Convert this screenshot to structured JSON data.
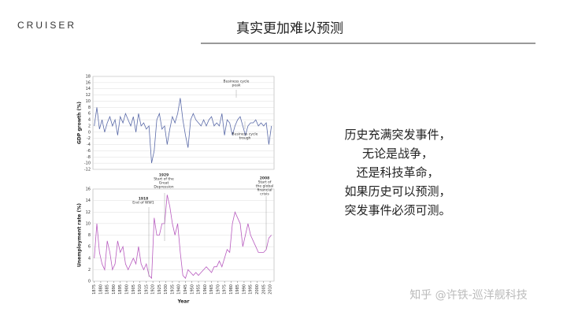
{
  "header": {
    "logo": "CRUISER",
    "title": "真实更加难以预测"
  },
  "text": [
    "历史充满突发事件，",
    "无论是战争，",
    "还是科技革命，",
    "如果历史可以预测，",
    "突发事件必须可测。"
  ],
  "watermark": "知乎 @许铁-巡洋舰科技",
  "chart_data": [
    {
      "type": "line",
      "ylabel": "GDP growth (%)",
      "x": [
        1875,
        1877,
        1879,
        1881,
        1883,
        1885,
        1887,
        1889,
        1891,
        1893,
        1895,
        1897,
        1899,
        1901,
        1903,
        1905,
        1907,
        1909,
        1911,
        1913,
        1915,
        1917,
        1919,
        1921,
        1923,
        1925,
        1927,
        1929,
        1931,
        1933,
        1935,
        1937,
        1939,
        1941,
        1943,
        1945,
        1947,
        1949,
        1951,
        1953,
        1955,
        1957,
        1959,
        1961,
        1963,
        1965,
        1967,
        1969,
        1971,
        1973,
        1975,
        1977,
        1979,
        1981,
        1983,
        1985,
        1987,
        1989,
        1991,
        1993,
        1995,
        1997,
        1999,
        2001,
        2003,
        2005,
        2007,
        2009,
        2011
      ],
      "series": [
        {
          "color": "#5a6aa8",
          "values": [
            2,
            8,
            1,
            4,
            0,
            3,
            5,
            2,
            4,
            -1,
            5,
            3,
            6,
            4,
            2,
            5,
            0,
            6,
            2,
            3,
            1,
            2,
            -10,
            -6,
            4,
            6,
            1,
            2,
            -4,
            1,
            5,
            3,
            6,
            11,
            4,
            -1,
            -5,
            4,
            6,
            4,
            3,
            2,
            4,
            2,
            4,
            5,
            2,
            3,
            2,
            6,
            -1,
            4,
            3,
            -1,
            2,
            4,
            5,
            2,
            -1,
            2,
            3,
            3,
            4,
            2,
            3,
            2,
            3,
            -4,
            2
          ]
        }
      ],
      "xlim": [
        1874,
        2013
      ],
      "ylim": [
        -12,
        18
      ],
      "yticks": [
        -12,
        -10,
        -8,
        -6,
        -4,
        -2,
        0,
        2,
        4,
        6,
        8,
        10,
        12,
        14,
        16,
        18
      ],
      "annotations": [
        [
          "Business cycle",
          "peak"
        ],
        [
          "Business cycle",
          "trough"
        ]
      ]
    },
    {
      "type": "line",
      "ylabel": "Unemployment rate (%)",
      "xlabel": "Year",
      "x": [
        1875,
        1877,
        1879,
        1881,
        1883,
        1885,
        1887,
        1889,
        1891,
        1893,
        1895,
        1897,
        1899,
        1901,
        1903,
        1905,
        1907,
        1909,
        1911,
        1913,
        1915,
        1917,
        1919,
        1921,
        1923,
        1925,
        1927,
        1929,
        1931,
        1933,
        1935,
        1937,
        1939,
        1941,
        1943,
        1945,
        1947,
        1949,
        1951,
        1953,
        1955,
        1957,
        1959,
        1961,
        1963,
        1965,
        1967,
        1969,
        1971,
        1973,
        1975,
        1977,
        1979,
        1981,
        1983,
        1985,
        1987,
        1989,
        1991,
        1993,
        1995,
        1997,
        1999,
        2001,
        2003,
        2005,
        2007,
        2009,
        2011
      ],
      "series": [
        {
          "color": "#b85cbf",
          "values": [
            4,
            10,
            5,
            3,
            2,
            7,
            5,
            2,
            3,
            7,
            5,
            6,
            3,
            2,
            3,
            4,
            3,
            6,
            3,
            2,
            3,
            1,
            0.5,
            11,
            8,
            8,
            10,
            10,
            15,
            13,
            10,
            8,
            10,
            5,
            1,
            0.5,
            2,
            1.5,
            1,
            1.5,
            1,
            1.5,
            2,
            2.5,
            2,
            1.5,
            2.5,
            2.5,
            3.5,
            2.5,
            4,
            5.5,
            5,
            10,
            12,
            11,
            10,
            6,
            8,
            10,
            8,
            7,
            6,
            5,
            5,
            5,
            5.5,
            7.5,
            8
          ]
        }
      ],
      "xlim": [
        1874,
        2013
      ],
      "ylim": [
        0,
        16
      ],
      "yticks": [
        0,
        2,
        4,
        6,
        8,
        10,
        12,
        14,
        16
      ],
      "xticks": [
        1875,
        1880,
        1885,
        1890,
        1895,
        1900,
        1905,
        1910,
        1915,
        1920,
        1925,
        1930,
        1935,
        1940,
        1945,
        1950,
        1955,
        1960,
        1965,
        1970,
        1975,
        1980,
        1985,
        1990,
        1995,
        2000,
        2005,
        2010
      ],
      "annotations": [
        [
          "1918",
          "End of WW1"
        ],
        [
          "1929",
          "Start of the",
          "Great",
          "Depression"
        ],
        [
          "2008",
          "Start of",
          "the global",
          "financial",
          "crisis"
        ]
      ]
    }
  ]
}
